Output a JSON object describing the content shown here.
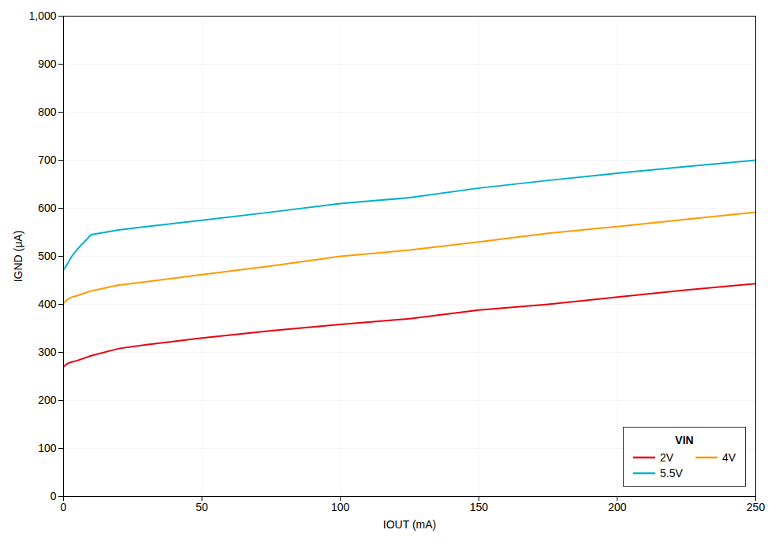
{
  "chart_data": {
    "type": "line",
    "x_label": "IOUT (mA)",
    "y_label": "IGND (μA)",
    "legend_title": "VIN",
    "x": [
      0,
      1,
      2,
      3,
      5,
      10,
      20,
      30,
      50,
      75,
      100,
      125,
      150,
      175,
      200,
      225,
      250
    ],
    "series": [
      {
        "name": "2V",
        "color": "#e8000d",
        "values": [
          270,
          275,
          278,
          280,
          283,
          293,
          308,
          316,
          330,
          345,
          358,
          370,
          388,
          400,
          415,
          430,
          443
        ]
      },
      {
        "name": "4V",
        "color": "#ff9900",
        "values": [
          402,
          408,
          412,
          415,
          418,
          428,
          440,
          447,
          462,
          480,
          500,
          513,
          530,
          548,
          562,
          577,
          592
        ]
      },
      {
        "name": "5.5V",
        "color": "#00b0c8",
        "values": [
          472,
          480,
          490,
          500,
          515,
          545,
          555,
          562,
          575,
          592,
          610,
          622,
          642,
          658,
          673,
          687,
          700
        ]
      }
    ],
    "xlim": [
      0,
      250
    ],
    "ylim": [
      0,
      1000
    ],
    "xticks": [
      0,
      50,
      100,
      150,
      200,
      250
    ],
    "yticks": [
      0,
      100,
      200,
      300,
      400,
      500,
      600,
      700,
      800,
      900,
      {
        "value": 1000,
        "label": "1,000"
      }
    ],
    "grid": true,
    "legend": "lower right"
  }
}
